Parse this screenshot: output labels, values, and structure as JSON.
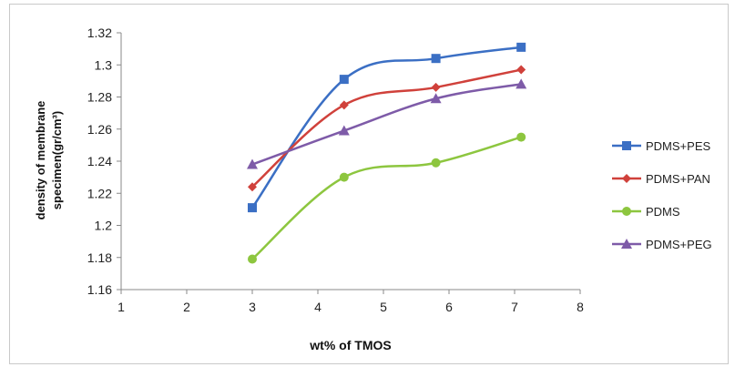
{
  "chart_data": {
    "type": "line",
    "title": "",
    "xlabel": "wt% of TMOS",
    "ylabel_line1": "density of membrane",
    "ylabel_line2": "specimen(gr/cm³)",
    "xlim": [
      1,
      8
    ],
    "ylim": [
      1.16,
      1.32
    ],
    "x_ticks": [
      "1",
      "2",
      "3",
      "4",
      "5",
      "6",
      "7",
      "8"
    ],
    "y_ticks": [
      "1.16",
      "1.18",
      "1.2",
      "1.22",
      "1.24",
      "1.26",
      "1.28",
      "1.3",
      "1.32"
    ],
    "x": [
      3,
      4.4,
      5.8,
      7.1
    ],
    "series": [
      {
        "name": "PDMS+PES",
        "color": "#3B6FC4",
        "marker": "square",
        "values": [
          1.211,
          1.291,
          1.304,
          1.311
        ]
      },
      {
        "name": "PDMS+PAN",
        "color": "#D0413B",
        "marker": "diamond",
        "values": [
          1.224,
          1.275,
          1.286,
          1.297
        ]
      },
      {
        "name": "PDMS",
        "color": "#8DC63F",
        "marker": "circle",
        "values": [
          1.179,
          1.23,
          1.239,
          1.255
        ]
      },
      {
        "name": "PDMS+PEG",
        "color": "#7E5BA8",
        "marker": "triangle",
        "values": [
          1.238,
          1.259,
          1.279,
          1.288
        ]
      }
    ],
    "grid": false,
    "legend": "right"
  }
}
